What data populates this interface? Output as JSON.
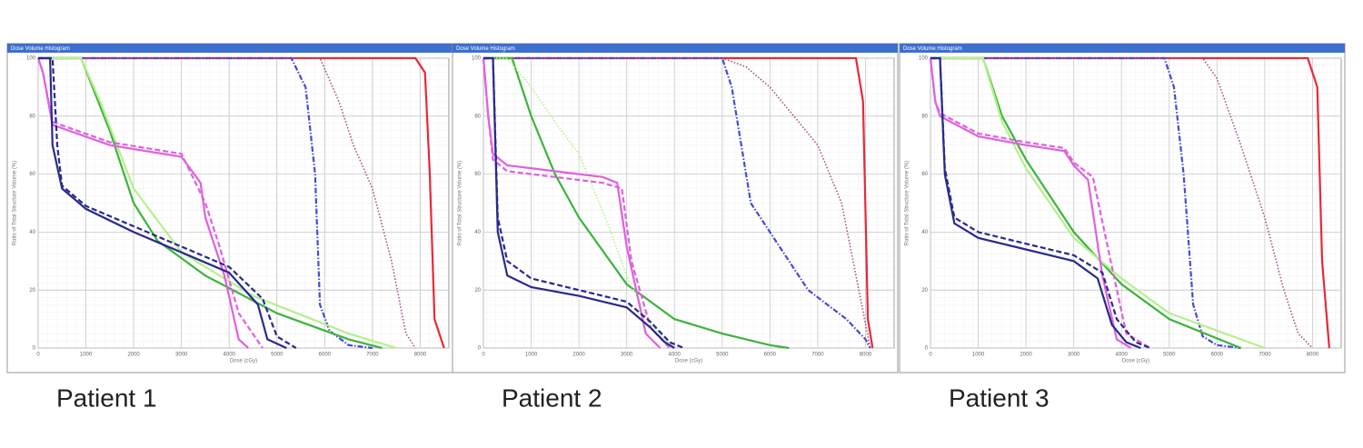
{
  "chart_data": [
    {
      "type": "line",
      "title": "Dose Volume Histogram",
      "caption": "Patient 1",
      "xlabel": "Dose (cGy)",
      "ylabel": "Ratio of Total Structure Volume (%)",
      "xlim": [
        0,
        8600
      ],
      "ylim": [
        0,
        100
      ],
      "xticks": [
        0,
        1000,
        2000,
        3000,
        4000,
        5000,
        6000,
        7000,
        8000
      ],
      "yticks": [
        0,
        20,
        40,
        60,
        80,
        100
      ],
      "grid": true,
      "series": [
        {
          "color": "#e8283a",
          "style": "solid",
          "x": [
            0,
            7900,
            8100,
            8200,
            8300,
            8500
          ],
          "values": [
            100,
            100,
            95,
            60,
            10,
            0
          ]
        },
        {
          "color": "#a0508c",
          "style": "dotted",
          "x": [
            0,
            5900,
            6300,
            6600,
            7000,
            7400,
            7700,
            7900
          ],
          "values": [
            100,
            100,
            85,
            70,
            55,
            30,
            5,
            0
          ]
        },
        {
          "color": "#4a4ad0",
          "style": "dashdot",
          "x": [
            0,
            5300,
            5600,
            5800,
            5900,
            6100,
            6500,
            7000
          ],
          "values": [
            100,
            100,
            90,
            60,
            15,
            6,
            1,
            0
          ]
        },
        {
          "color": "#3cb43c",
          "style": "solid",
          "x": [
            0,
            900,
            1500,
            2000,
            2500,
            3500,
            5000,
            6500,
            7200
          ],
          "values": [
            100,
            100,
            75,
            50,
            37,
            25,
            12,
            3,
            0
          ]
        },
        {
          "color": "#b4f08c",
          "style": "solid",
          "x": [
            0,
            900,
            1300,
            2000,
            3000,
            4500,
            6500,
            7500
          ],
          "values": [
            100,
            100,
            85,
            55,
            33,
            18,
            5,
            0
          ]
        },
        {
          "color": "#e060e0",
          "style": "solid",
          "x": [
            0,
            100,
            300,
            1500,
            3000,
            3400,
            3500,
            3900,
            4200,
            4400
          ],
          "values": [
            100,
            95,
            77,
            70,
            66,
            57,
            45,
            25,
            3,
            0
          ]
        },
        {
          "color": "#e060e0",
          "style": "dashed",
          "x": [
            0,
            100,
            300,
            1500,
            3000,
            3500,
            3800,
            4200,
            4700
          ],
          "values": [
            100,
            95,
            78,
            71,
            67,
            50,
            35,
            12,
            0
          ]
        },
        {
          "color": "#2a2a8c",
          "style": "solid",
          "x": [
            0,
            250,
            300,
            500,
            1000,
            2000,
            3000,
            4000,
            4600,
            4800,
            5200
          ],
          "values": [
            100,
            100,
            70,
            55,
            48,
            40,
            33,
            26,
            15,
            3,
            0
          ]
        },
        {
          "color": "#2a2a8c",
          "style": "dashed",
          "x": [
            0,
            300,
            400,
            500,
            1000,
            2000,
            3000,
            4000,
            4700,
            5000,
            5400
          ],
          "values": [
            100,
            100,
            70,
            56,
            49,
            42,
            35,
            28,
            17,
            4,
            0
          ]
        }
      ]
    },
    {
      "type": "line",
      "title": "Dose Volume Histogram",
      "caption": "Patient 2",
      "xlabel": "Dose (cGy)",
      "ylabel": "Ratio of Total Structure Volume (%)",
      "xlim": [
        0,
        8600
      ],
      "ylim": [
        0,
        100
      ],
      "xticks": [
        0,
        1000,
        2000,
        3000,
        4000,
        5000,
        6000,
        7000,
        8000
      ],
      "yticks": [
        0,
        20,
        40,
        60,
        80,
        100
      ],
      "grid": true,
      "series": [
        {
          "color": "#e8283a",
          "style": "solid",
          "x": [
            0,
            7800,
            7950,
            8050,
            8150
          ],
          "values": [
            100,
            100,
            85,
            10,
            0
          ]
        },
        {
          "color": "#a0508c",
          "style": "dotted",
          "x": [
            0,
            5000,
            5500,
            6000,
            6500,
            7000,
            7500,
            7800,
            8100
          ],
          "values": [
            100,
            100,
            97,
            90,
            80,
            70,
            50,
            25,
            0
          ]
        },
        {
          "color": "#4a4ad0",
          "style": "dashdot",
          "x": [
            0,
            5000,
            5200,
            5400,
            5600,
            6000,
            6800,
            7600,
            8000,
            8100
          ],
          "values": [
            100,
            100,
            90,
            70,
            50,
            40,
            20,
            10,
            3,
            0
          ]
        },
        {
          "color": "#3cb43c",
          "style": "solid",
          "x": [
            0,
            600,
            1000,
            1500,
            2000,
            3000,
            4000,
            5000,
            6000,
            6400
          ],
          "values": [
            100,
            100,
            80,
            60,
            45,
            22,
            10,
            5,
            1,
            0
          ]
        },
        {
          "color": "#b4f08c",
          "style": "dotted",
          "x": [
            0,
            500,
            1000,
            1500,
            2000,
            2600,
            3000,
            3500,
            4000
          ],
          "values": [
            100,
            100,
            90,
            78,
            67,
            43,
            25,
            8,
            0
          ]
        },
        {
          "color": "#e060e0",
          "style": "solid",
          "x": [
            0,
            100,
            200,
            500,
            1500,
            2500,
            2800,
            3000,
            3400,
            3700
          ],
          "values": [
            100,
            80,
            67,
            63,
            61,
            59,
            57,
            35,
            5,
            0
          ]
        },
        {
          "color": "#e060e0",
          "style": "dashed",
          "x": [
            0,
            100,
            200,
            500,
            1500,
            2500,
            2900,
            3100,
            3500,
            3900
          ],
          "values": [
            100,
            80,
            65,
            61,
            59,
            57,
            55,
            30,
            7,
            0
          ]
        },
        {
          "color": "#2a2a8c",
          "style": "solid",
          "x": [
            0,
            200,
            300,
            500,
            1000,
            2000,
            3000,
            3500,
            3800,
            4000
          ],
          "values": [
            100,
            100,
            40,
            25,
            21,
            18,
            14,
            7,
            2,
            0
          ]
        },
        {
          "color": "#2a2a8c",
          "style": "dashed",
          "x": [
            0,
            200,
            300,
            500,
            1000,
            2000,
            3000,
            3500,
            3900,
            4200
          ],
          "values": [
            100,
            100,
            45,
            30,
            24,
            20,
            16,
            9,
            2,
            0
          ]
        }
      ]
    },
    {
      "type": "line",
      "title": "Dose Volume Histogram",
      "caption": "Patient 3",
      "xlabel": "Dose (cGy)",
      "ylabel": "Ratio of Total Structure Volume (%)",
      "xlim": [
        0,
        8600
      ],
      "ylim": [
        0,
        100
      ],
      "xticks": [
        0,
        1000,
        2000,
        3000,
        4000,
        5000,
        6000,
        7000,
        8000
      ],
      "yticks": [
        0,
        20,
        40,
        60,
        80,
        100
      ],
      "grid": true,
      "series": [
        {
          "color": "#e8283a",
          "style": "solid",
          "x": [
            0,
            7900,
            8100,
            8200,
            8350
          ],
          "values": [
            100,
            100,
            90,
            30,
            0
          ]
        },
        {
          "color": "#a0508c",
          "style": "dotted",
          "x": [
            0,
            5700,
            6000,
            6500,
            7000,
            7400,
            7700,
            8000
          ],
          "values": [
            100,
            100,
            93,
            70,
            45,
            20,
            5,
            0
          ]
        },
        {
          "color": "#4a4ad0",
          "style": "dashdot",
          "x": [
            0,
            4900,
            5100,
            5300,
            5500,
            5700,
            6000,
            6500
          ],
          "values": [
            100,
            100,
            90,
            60,
            15,
            4,
            1,
            0
          ]
        },
        {
          "color": "#3cb43c",
          "style": "solid",
          "x": [
            0,
            1100,
            1500,
            2000,
            3000,
            4000,
            5000,
            6500
          ],
          "values": [
            100,
            100,
            80,
            65,
            40,
            22,
            10,
            0
          ]
        },
        {
          "color": "#b4f08c",
          "style": "solid",
          "x": [
            0,
            1100,
            1500,
            2000,
            3000,
            4000,
            5000,
            7000
          ],
          "values": [
            100,
            100,
            78,
            62,
            38,
            24,
            12,
            0
          ]
        },
        {
          "color": "#e060e0",
          "style": "solid",
          "x": [
            0,
            100,
            200,
            1000,
            2000,
            2800,
            3000,
            3300,
            3600,
            3900,
            4200
          ],
          "values": [
            100,
            85,
            80,
            73,
            70,
            68,
            63,
            58,
            25,
            3,
            0
          ]
        },
        {
          "color": "#e060e0",
          "style": "dashed",
          "x": [
            0,
            100,
            200,
            1000,
            2000,
            2800,
            3000,
            3400,
            3800,
            4100,
            4600
          ],
          "values": [
            100,
            85,
            81,
            74,
            71,
            69,
            64,
            59,
            28,
            5,
            0
          ]
        },
        {
          "color": "#2a2a8c",
          "style": "solid",
          "x": [
            0,
            200,
            300,
            500,
            1000,
            2000,
            3000,
            3500,
            3800,
            4100,
            4400
          ],
          "values": [
            100,
            100,
            60,
            43,
            38,
            34,
            30,
            24,
            8,
            2,
            0
          ]
        },
        {
          "color": "#2a2a8c",
          "style": "dashed",
          "x": [
            0,
            200,
            300,
            500,
            1000,
            2000,
            3000,
            3600,
            3900,
            4300,
            4600
          ],
          "values": [
            100,
            100,
            62,
            45,
            40,
            36,
            32,
            26,
            10,
            2,
            0
          ]
        }
      ]
    }
  ]
}
